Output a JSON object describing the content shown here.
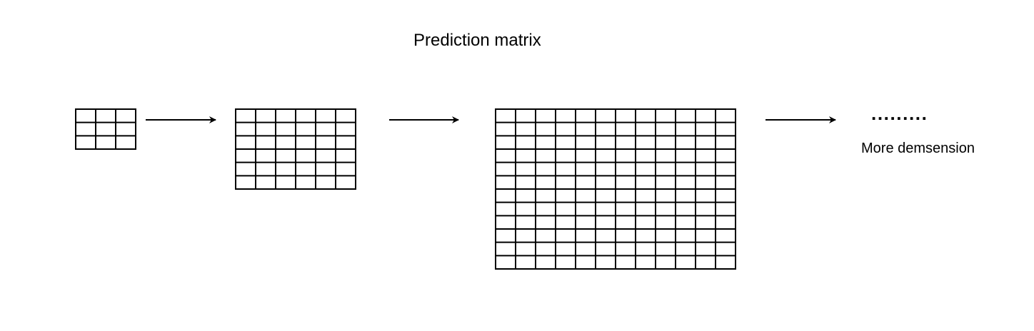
{
  "diagram": {
    "title": "Prediction matrix",
    "continuation": ".........",
    "caption": "More demsension",
    "stroke_color": "#000000",
    "background_color": "#ffffff",
    "matrices": [
      {
        "name": "matrix-3x3",
        "rows": 3,
        "cols": 3
      },
      {
        "name": "matrix-6x6",
        "rows": 6,
        "cols": 6
      },
      {
        "name": "matrix-12x12",
        "rows": 12,
        "cols": 12
      }
    ],
    "arrow_count": 3
  }
}
